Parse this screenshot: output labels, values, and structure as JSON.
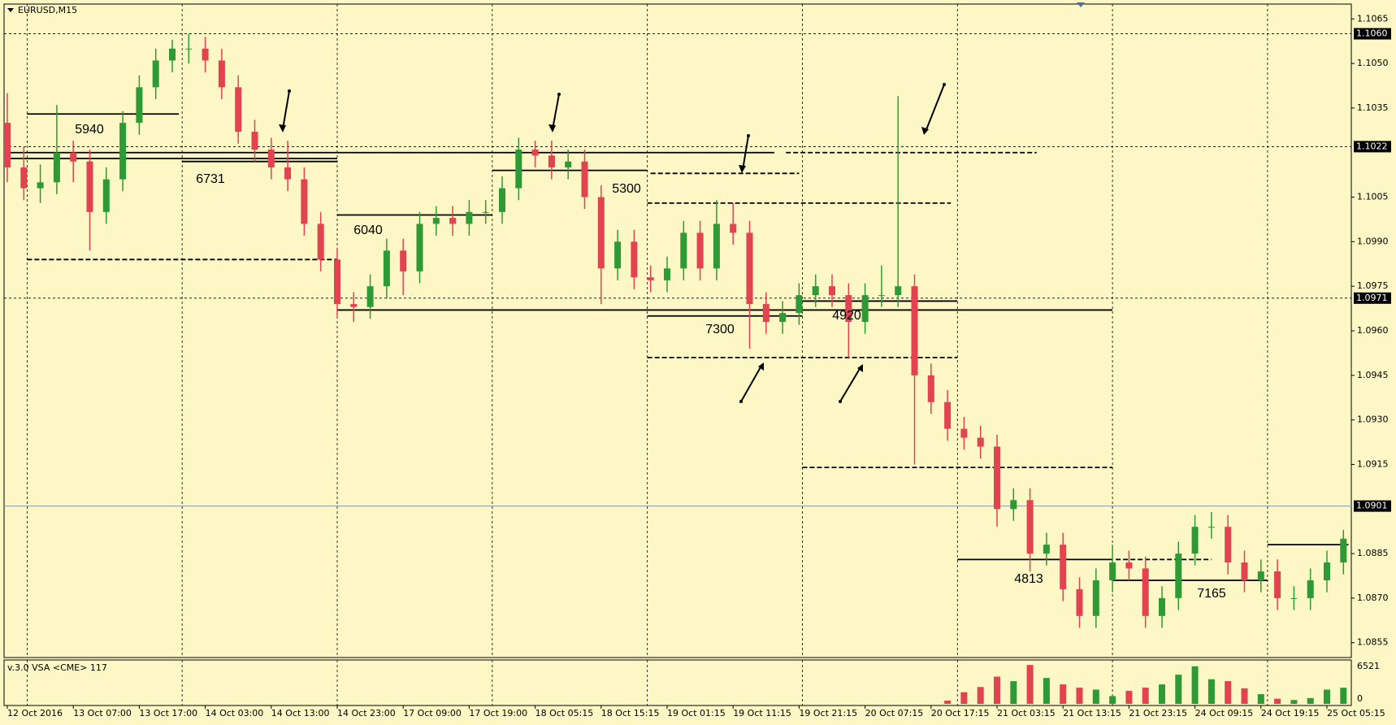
{
  "title": "EURUSD,M15",
  "chart_data": {
    "type": "candlestick",
    "ohlc": [
      [
        1.103,
        1.104,
        1.101,
        1.1015
      ],
      [
        1.1015,
        1.1022,
        1.1004,
        1.1008
      ],
      [
        1.1008,
        1.1016,
        1.1003,
        1.101
      ],
      [
        1.101,
        1.1036,
        1.1006,
        1.102
      ],
      [
        1.102,
        1.1024,
        1.101,
        1.1017
      ],
      [
        1.1017,
        1.1021,
        1.0987,
        1.1
      ],
      [
        1.1,
        1.1015,
        1.0996,
        1.1011
      ],
      [
        1.1011,
        1.1034,
        1.1007,
        1.103
      ],
      [
        1.103,
        1.1046,
        1.1026,
        1.1042
      ],
      [
        1.1042,
        1.1055,
        1.1038,
        1.1051
      ],
      [
        1.1051,
        1.1058,
        1.1047,
        1.1055
      ],
      [
        1.1055,
        1.106,
        1.105,
        1.1055
      ],
      [
        1.1055,
        1.1059,
        1.1047,
        1.1051
      ],
      [
        1.1051,
        1.1055,
        1.1038,
        1.1042
      ],
      [
        1.1042,
        1.1046,
        1.1023,
        1.1027
      ],
      [
        1.1027,
        1.1031,
        1.1017,
        1.1021
      ],
      [
        1.1021,
        1.1025,
        1.1011,
        1.1015
      ],
      [
        1.1015,
        1.1024,
        1.1007,
        1.1011
      ],
      [
        1.1011,
        1.1015,
        1.0992,
        1.0996
      ],
      [
        1.0996,
        1.1,
        1.098,
        1.0984
      ],
      [
        1.0984,
        1.0988,
        1.0965,
        1.0969
      ],
      [
        1.0969,
        1.0973,
        1.0963,
        1.0968
      ],
      [
        1.0968,
        1.0979,
        1.0964,
        1.0975
      ],
      [
        1.0975,
        1.0991,
        1.0971,
        1.0987
      ],
      [
        1.0987,
        1.0991,
        1.0972,
        1.098
      ],
      [
        1.098,
        1.1,
        1.0976,
        1.0996
      ],
      [
        1.0996,
        1.1002,
        1.0992,
        1.0998
      ],
      [
        1.0998,
        1.1002,
        1.0992,
        1.0996
      ],
      [
        1.0996,
        1.1004,
        1.0992,
        1.1
      ],
      [
        1.1,
        1.1004,
        1.0996,
        1.1
      ],
      [
        1.1,
        1.1012,
        1.0996,
        1.1008
      ],
      [
        1.1008,
        1.1025,
        1.1004,
        1.1021
      ],
      [
        1.1021,
        1.1024,
        1.1015,
        1.1019
      ],
      [
        1.1019,
        1.1024,
        1.1011,
        1.1015
      ],
      [
        1.1015,
        1.1021,
        1.1011,
        1.1017
      ],
      [
        1.1017,
        1.1021,
        1.1001,
        1.1005
      ],
      [
        1.1005,
        1.1009,
        1.0969,
        1.0981
      ],
      [
        1.0981,
        1.0994,
        1.0977,
        1.099
      ],
      [
        1.099,
        1.0994,
        1.0974,
        1.0978
      ],
      [
        1.0978,
        1.0982,
        1.0973,
        1.0977
      ],
      [
        1.0977,
        1.0985,
        1.0973,
        1.0981
      ],
      [
        1.0981,
        1.0997,
        1.0977,
        1.0993
      ],
      [
        1.0993,
        1.0997,
        1.0977,
        1.0981
      ],
      [
        1.0981,
        1.1004,
        1.0977,
        1.0996
      ],
      [
        1.0996,
        1.1003,
        1.0989,
        1.0993
      ],
      [
        1.0993,
        1.0997,
        1.0954,
        1.0969
      ],
      [
        1.0969,
        1.0973,
        1.0959,
        1.0963
      ],
      [
        1.0963,
        1.097,
        1.0959,
        1.0966
      ],
      [
        1.0966,
        1.0976,
        1.0962,
        1.0972
      ],
      [
        1.0972,
        1.0979,
        1.0968,
        1.0975
      ],
      [
        1.0975,
        1.0979,
        1.0968,
        1.0972
      ],
      [
        1.0972,
        1.0976,
        1.0951,
        1.0963
      ],
      [
        1.0963,
        1.0976,
        1.0959,
        1.0972
      ],
      [
        1.0972,
        1.0982,
        1.0968,
        1.0972
      ],
      [
        1.0972,
        1.1039,
        1.0968,
        1.0975
      ],
      [
        1.0975,
        1.0979,
        1.0915,
        1.0945
      ],
      [
        1.0945,
        1.0949,
        1.0932,
        1.0936
      ],
      [
        1.0936,
        1.094,
        1.0923,
        1.0927
      ],
      [
        1.0927,
        1.0931,
        1.092,
        1.0924
      ],
      [
        1.0924,
        1.0928,
        1.0917,
        1.0921
      ],
      [
        1.0921,
        1.0925,
        1.0894,
        1.09
      ],
      [
        1.09,
        1.0907,
        1.0896,
        1.0903
      ],
      [
        1.0903,
        1.0907,
        1.0879,
        1.0885
      ],
      [
        1.0885,
        1.0892,
        1.0881,
        1.0888
      ],
      [
        1.0888,
        1.0892,
        1.0869,
        1.0873
      ],
      [
        1.0873,
        1.0877,
        1.086,
        1.0864
      ],
      [
        1.0864,
        1.088,
        1.086,
        1.0876
      ],
      [
        1.0876,
        1.0888,
        1.0872,
        1.0882
      ],
      [
        1.0882,
        1.0886,
        1.0876,
        1.088
      ],
      [
        1.088,
        1.0884,
        1.086,
        1.0864
      ],
      [
        1.0864,
        1.0874,
        1.086,
        1.087
      ],
      [
        1.087,
        1.0889,
        1.0866,
        1.0885
      ],
      [
        1.0885,
        1.0898,
        1.0881,
        1.0894
      ],
      [
        1.0894,
        1.0899,
        1.089,
        1.0894
      ],
      [
        1.0894,
        1.0898,
        1.0878,
        1.0882
      ],
      [
        1.0882,
        1.0886,
        1.0872,
        1.0876
      ],
      [
        1.0876,
        1.0883,
        1.0872,
        1.0879
      ],
      [
        1.0879,
        1.0883,
        1.0866,
        1.087
      ],
      [
        1.087,
        1.0874,
        1.0866,
        1.087
      ],
      [
        1.087,
        1.088,
        1.0866,
        1.0876
      ],
      [
        1.0876,
        1.0886,
        1.0872,
        1.0882
      ],
      [
        1.0882,
        1.0893,
        1.0878,
        1.089
      ]
    ],
    "up_color": "#2e9a35",
    "down_color": "#e2434f",
    "ylim": [
      1.085,
      1.107
    ],
    "yticks": [
      {
        "value": 1.1065,
        "label": "1.1065"
      },
      {
        "value": 1.105,
        "label": "1.1050"
      },
      {
        "value": 1.1035,
        "label": "1.1035"
      },
      {
        "value": 1.1005,
        "label": "1.1005"
      },
      {
        "value": 1.099,
        "label": "1.0990"
      },
      {
        "value": 1.0975,
        "label": "1.0975"
      },
      {
        "value": 1.096,
        "label": "1.0960"
      },
      {
        "value": 1.0945,
        "label": "1.0945"
      },
      {
        "value": 1.093,
        "label": "1.0930"
      },
      {
        "value": 1.0915,
        "label": "1.0915"
      },
      {
        "value": 1.0885,
        "label": "1.0885"
      },
      {
        "value": 1.087,
        "label": "1.0870"
      },
      {
        "value": 1.0855,
        "label": "1.0855"
      }
    ],
    "price_lines": [
      {
        "value": 1.106,
        "label": "1.1060",
        "style": "dotted"
      },
      {
        "value": 1.1022,
        "label": "1.1022",
        "style": "dotted"
      },
      {
        "value": 1.0971,
        "label": "1.0971",
        "style": "dotted"
      },
      {
        "value": 1.0901,
        "label": "1.0901",
        "style": "solid"
      }
    ],
    "xticks": [
      {
        "value": 0,
        "label": "12 Oct 2016"
      },
      {
        "value": 4,
        "label": "13 Oct 07:00"
      },
      {
        "value": 8,
        "label": "13 Oct 17:00"
      },
      {
        "value": 12,
        "label": "14 Oct 03:00"
      },
      {
        "value": 16,
        "label": "14 Oct 13:00"
      },
      {
        "value": 20,
        "label": "14 Oct 23:00"
      },
      {
        "value": 24,
        "label": "17 Oct 09:00"
      },
      {
        "value": 28,
        "label": "17 Oct 19:00"
      },
      {
        "value": 32,
        "label": "18 Oct 05:15"
      },
      {
        "value": 36,
        "label": "18 Oct 15:15"
      },
      {
        "value": 40,
        "label": "19 Oct 01:15"
      },
      {
        "value": 44,
        "label": "19 Oct 11:15"
      },
      {
        "value": 48,
        "label": "19 Oct 21:15"
      },
      {
        "value": 52,
        "label": "20 Oct 07:15"
      },
      {
        "value": 56,
        "label": "20 Oct 17:15"
      },
      {
        "value": 60,
        "label": "21 Oct 03:15"
      },
      {
        "value": 64,
        "label": "21 Oct 13:15"
      },
      {
        "value": 68,
        "label": "21 Oct 23:15"
      },
      {
        "value": 72,
        "label": "24 Oct 09:15"
      },
      {
        "value": 76,
        "label": "24 Oct 19:15"
      },
      {
        "value": 80,
        "label": "25 Oct 05:15"
      }
    ],
    "xgrid": [
      1.2,
      10.6,
      20,
      29.4,
      38.8,
      48.2,
      57.6,
      67,
      76.4
    ],
    "levels": [
      {
        "from": 1.2,
        "to": 10.4,
        "price": 1.1033,
        "style": "solid"
      },
      {
        "from": 0,
        "to": 46.5,
        "price": 1.102,
        "style": "solid"
      },
      {
        "from": 0,
        "to": 20,
        "price": 1.1018,
        "style": "solid"
      },
      {
        "from": 10.6,
        "to": 20,
        "price": 1.1017,
        "style": "solid"
      },
      {
        "from": 1.2,
        "to": 20,
        "price": 1.0984,
        "style": "dashed"
      },
      {
        "from": 20,
        "to": 29.4,
        "price": 1.0999,
        "style": "solid"
      },
      {
        "from": 29.4,
        "to": 38.8,
        "price": 1.1014,
        "style": "solid"
      },
      {
        "from": 39,
        "to": 48,
        "price": 1.1013,
        "style": "dashed"
      },
      {
        "from": 38.8,
        "to": 57.2,
        "price": 1.1003,
        "style": "dashed"
      },
      {
        "from": 20,
        "to": 67,
        "price": 1.0967,
        "style": "solid"
      },
      {
        "from": 38.8,
        "to": 48.2,
        "price": 1.0965,
        "style": "solid"
      },
      {
        "from": 38.8,
        "to": 57.6,
        "price": 1.0951,
        "style": "dashed"
      },
      {
        "from": 48.2,
        "to": 57.6,
        "price": 1.097,
        "style": "solid"
      },
      {
        "from": 47.2,
        "to": 62.4,
        "price": 1.102,
        "style": "dashed"
      },
      {
        "from": 48.2,
        "to": 67,
        "price": 1.0914,
        "style": "dashed"
      },
      {
        "from": 57.6,
        "to": 67,
        "price": 1.0883,
        "style": "solid"
      },
      {
        "from": 67.2,
        "to": 73,
        "price": 1.0883,
        "style": "dashed"
      },
      {
        "from": 67,
        "to": 76.4,
        "price": 1.0876,
        "style": "solid"
      },
      {
        "from": 76.4,
        "to": 81.3,
        "price": 1.0888,
        "style": "solid"
      }
    ],
    "annotations": [
      "5940",
      "6731",
      "6040",
      "5300",
      "7300",
      "4920",
      "4813",
      "7165"
    ],
    "volume_panel": {
      "label": "v.3.0 VSA <CME> 117",
      "vlim": [
        0,
        6521
      ],
      "vticks": [
        6521,
        0
      ],
      "values": [
        null,
        null,
        null,
        null,
        null,
        null,
        null,
        null,
        null,
        null,
        null,
        null,
        null,
        null,
        null,
        null,
        null,
        null,
        null,
        null,
        null,
        null,
        null,
        null,
        null,
        null,
        null,
        null,
        null,
        null,
        null,
        null,
        null,
        null,
        null,
        null,
        null,
        null,
        null,
        null,
        null,
        null,
        null,
        null,
        null,
        null,
        null,
        null,
        null,
        null,
        null,
        null,
        null,
        null,
        null,
        null,
        null,
        500,
        1800,
        2600,
        4200,
        3500,
        6000,
        4000,
        3000,
        2500,
        2200,
        1200,
        2000,
        2500,
        3000,
        4500,
        5800,
        3800,
        3500,
        2400,
        1500,
        800,
        600,
        900,
        2200,
        2500
      ]
    }
  }
}
